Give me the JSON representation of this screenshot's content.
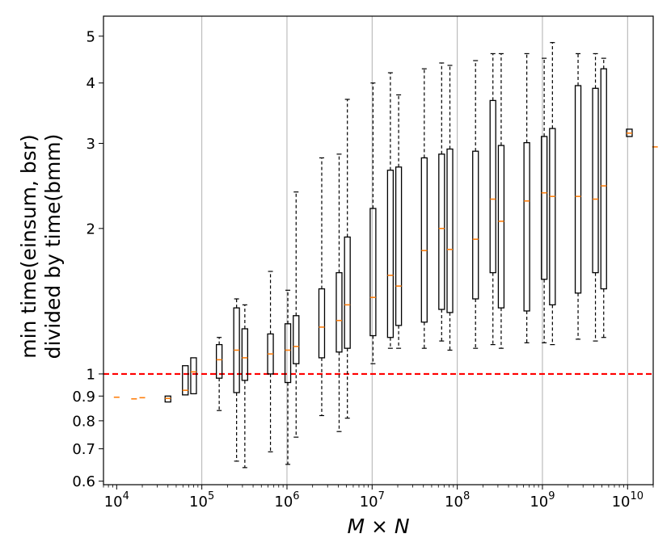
{
  "chart_data": {
    "type": "box",
    "x_scale": "log",
    "y_scale": "log",
    "xlabel": "M × N",
    "ylabel": [
      "min time(einsum, bsr)",
      "divided by time(bmm)"
    ],
    "xlim": [
      7000,
      20000000000
    ],
    "ylim": [
      0.59,
      5.5
    ],
    "x_major_ticks": [
      {
        "value": 10000,
        "base": "10",
        "exp": "4"
      },
      {
        "value": 100000,
        "base": "10",
        "exp": "5"
      },
      {
        "value": 1000000,
        "base": "10",
        "exp": "6"
      },
      {
        "value": 10000000,
        "base": "10",
        "exp": "7"
      },
      {
        "value": 100000000,
        "base": "10",
        "exp": "8"
      },
      {
        "value": 1000000000,
        "base": "10",
        "exp": "9"
      },
      {
        "value": 10000000000,
        "base": "10",
        "exp": "10"
      }
    ],
    "y_ticks": [
      {
        "value": 0.6,
        "label": "0.6"
      },
      {
        "value": 0.7,
        "label": "0.7"
      },
      {
        "value": 0.8,
        "label": "0.8"
      },
      {
        "value": 0.9,
        "label": "0.9"
      },
      {
        "value": 1,
        "label": "1"
      },
      {
        "value": 2,
        "label": "2"
      },
      {
        "value": 3,
        "label": "3"
      },
      {
        "value": 4,
        "label": "4"
      },
      {
        "value": 5,
        "label": "5"
      }
    ],
    "grid": "vertical major x gridlines",
    "reference_line": {
      "y": 1,
      "color": "#ff0000",
      "style": "dashed"
    },
    "box_color": "#000000",
    "median_color": "#ff7f0e",
    "boxes": [
      {
        "x": 10000,
        "whislo": 0.895,
        "q1": 0.895,
        "med": 0.895,
        "q3": 0.895,
        "whishi": 0.895
      },
      {
        "x": 16000,
        "whislo": 0.888,
        "q1": 0.888,
        "med": 0.888,
        "q3": 0.888,
        "whishi": 0.888
      },
      {
        "x": 20000,
        "whislo": 0.893,
        "q1": 0.893,
        "med": 0.893,
        "q3": 0.893,
        "whishi": 0.893
      },
      {
        "x": 40000,
        "whislo": 0.875,
        "q1": 0.875,
        "med": 0.89,
        "q3": 0.9,
        "whishi": 0.9
      },
      {
        "x": 64000,
        "whislo": 0.905,
        "q1": 0.905,
        "med": 0.925,
        "q3": 1.04,
        "whishi": 1.04
      },
      {
        "x": 80000,
        "whislo": 0.91,
        "q1": 0.91,
        "med": 1.01,
        "q3": 1.08,
        "whishi": 1.08
      },
      {
        "x": 160000,
        "whislo": 0.84,
        "q1": 0.98,
        "med": 1.07,
        "q3": 1.15,
        "whishi": 1.19
      },
      {
        "x": 256000,
        "whislo": 0.66,
        "q1": 0.915,
        "med": 1.12,
        "q3": 1.37,
        "whishi": 1.43
      },
      {
        "x": 320000,
        "whislo": 0.64,
        "q1": 0.97,
        "med": 1.08,
        "q3": 1.24,
        "whishi": 1.39
      },
      {
        "x": 640000,
        "whislo": 0.69,
        "q1": 1.0,
        "med": 1.1,
        "q3": 1.21,
        "whishi": 1.63
      },
      {
        "x": 1024000,
        "whislo": 0.65,
        "q1": 0.96,
        "med": 1.12,
        "q3": 1.27,
        "whishi": 1.49
      },
      {
        "x": 1280000,
        "whislo": 0.74,
        "q1": 1.05,
        "med": 1.14,
        "q3": 1.32,
        "whishi": 2.38
      },
      {
        "x": 2560000,
        "whislo": 0.82,
        "q1": 1.08,
        "med": 1.25,
        "q3": 1.5,
        "whishi": 2.8
      },
      {
        "x": 4096000,
        "whislo": 0.76,
        "q1": 1.11,
        "med": 1.29,
        "q3": 1.62,
        "whishi": 2.85
      },
      {
        "x": 5120000,
        "whislo": 0.81,
        "q1": 1.13,
        "med": 1.39,
        "q3": 1.92,
        "whishi": 3.7
      },
      {
        "x": 10240000,
        "whislo": 1.05,
        "q1": 1.2,
        "med": 1.44,
        "q3": 2.2,
        "whishi": 4.0
      },
      {
        "x": 16384000,
        "whislo": 1.13,
        "q1": 1.19,
        "med": 1.6,
        "q3": 2.64,
        "whishi": 4.2
      },
      {
        "x": 20480000,
        "whislo": 1.13,
        "q1": 1.26,
        "med": 1.52,
        "q3": 2.68,
        "whishi": 3.78
      },
      {
        "x": 40960000,
        "whislo": 1.13,
        "q1": 1.28,
        "med": 1.8,
        "q3": 2.8,
        "whishi": 4.28
      },
      {
        "x": 65536000,
        "whislo": 1.17,
        "q1": 1.36,
        "med": 2.0,
        "q3": 2.85,
        "whishi": 4.4
      },
      {
        "x": 81920000,
        "whislo": 1.12,
        "q1": 1.34,
        "med": 1.81,
        "q3": 2.92,
        "whishi": 4.35
      },
      {
        "x": 163840000,
        "whislo": 1.13,
        "q1": 1.43,
        "med": 1.9,
        "q3": 2.89,
        "whishi": 4.45
      },
      {
        "x": 262144000,
        "whislo": 1.15,
        "q1": 1.62,
        "med": 2.3,
        "q3": 3.68,
        "whishi": 4.6
      },
      {
        "x": 327680000,
        "whislo": 1.13,
        "q1": 1.37,
        "med": 2.07,
        "q3": 2.97,
        "whishi": 4.6
      },
      {
        "x": 655360000,
        "whislo": 1.16,
        "q1": 1.35,
        "med": 2.28,
        "q3": 3.01,
        "whishi": 4.6
      },
      {
        "x": 1048576000,
        "whislo": 1.16,
        "q1": 1.57,
        "med": 2.37,
        "q3": 3.1,
        "whishi": 4.5
      },
      {
        "x": 1310720000,
        "whislo": 1.15,
        "q1": 1.39,
        "med": 2.33,
        "q3": 3.22,
        "whishi": 4.85
      },
      {
        "x": 2621440000,
        "whislo": 1.18,
        "q1": 1.47,
        "med": 2.33,
        "q3": 3.95,
        "whishi": 4.6
      },
      {
        "x": 4194304000,
        "whislo": 1.17,
        "q1": 1.62,
        "med": 2.3,
        "q3": 3.9,
        "whishi": 4.6
      },
      {
        "x": 5242880000,
        "whislo": 1.19,
        "q1": 1.5,
        "med": 2.45,
        "q3": 4.28,
        "whishi": 4.5
      },
      {
        "x": 10485760000,
        "whislo": 3.1,
        "q1": 3.1,
        "med": 3.15,
        "q3": 3.21,
        "whishi": 3.21
      },
      {
        "x": 20971520000,
        "whislo": 2.95,
        "q1": 2.95,
        "med": 2.95,
        "q3": 2.95,
        "whishi": 2.95
      }
    ]
  }
}
